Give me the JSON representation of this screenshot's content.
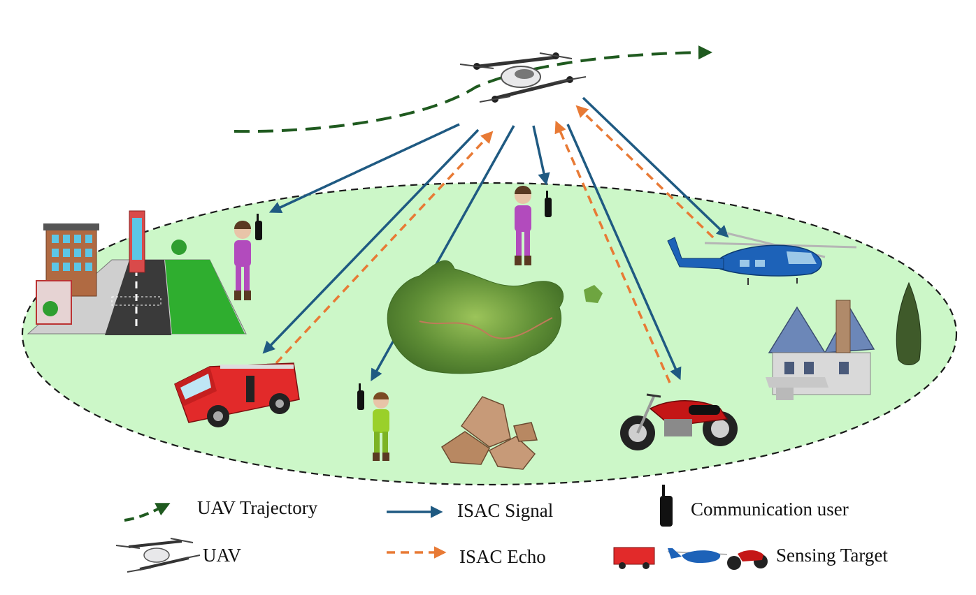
{
  "colors": {
    "coverage_fill": "#ccf7c8",
    "coverage_border": "#1a1a1a",
    "trajectory": "#1f5a1f",
    "isac_signal": "#1f5a82",
    "isac_echo": "#e87a35"
  },
  "legend": {
    "trajectory_label": "UAV Trajectory",
    "uav_label": "UAV",
    "signal_label": "ISAC Signal",
    "echo_label": "ISAC Echo",
    "comm_user_label": "Communication user",
    "sensing_target_label": "Sensing Target"
  },
  "scene": {
    "icons": [
      "drone-icon",
      "walkie-talkie-icon",
      "person-icon",
      "fire-truck-icon",
      "helicopter-icon",
      "motorcycle-icon",
      "house-icon",
      "city-block-icon",
      "terrain-icon",
      "rock-icon",
      "tree-icon"
    ]
  }
}
